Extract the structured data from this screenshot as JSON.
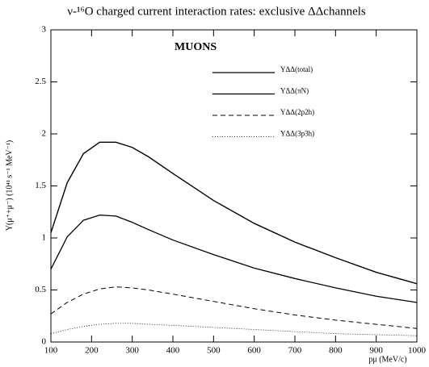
{
  "chart_data": {
    "type": "line",
    "title": "ν-¹⁶O charged current interaction rates: exclusive ΔΔchannels",
    "xlabel": "pμ (MeV/c)",
    "ylabel": "Y(μ⁺+μ⁻) (10⁴¹ s⁻¹ MeV⁻¹)",
    "annotation": "MUONS",
    "x": [
      100,
      140,
      180,
      220,
      260,
      300,
      340,
      400,
      500,
      600,
      700,
      800,
      900,
      1000
    ],
    "series": [
      {
        "name": "YΔΔ(total)",
        "color": "#000000",
        "style": "solid",
        "values": [
          1.05,
          1.53,
          1.81,
          1.92,
          1.92,
          1.87,
          1.78,
          1.62,
          1.36,
          1.14,
          0.96,
          0.81,
          0.67,
          0.56
        ]
      },
      {
        "name": "YΔΔ(πN)",
        "color": "#000000",
        "style": "solid",
        "values": [
          0.7,
          1.01,
          1.17,
          1.22,
          1.21,
          1.15,
          1.08,
          0.98,
          0.84,
          0.71,
          0.61,
          0.52,
          0.44,
          0.38
        ]
      },
      {
        "name": "YΔΔ(2p2h)",
        "color": "#000000",
        "style": "dashed",
        "values": [
          0.27,
          0.38,
          0.46,
          0.51,
          0.53,
          0.52,
          0.5,
          0.46,
          0.39,
          0.32,
          0.26,
          0.21,
          0.17,
          0.13
        ]
      },
      {
        "name": "YΔΔ(3p3h)",
        "color": "#000000",
        "style": "dotted",
        "values": [
          0.08,
          0.12,
          0.15,
          0.17,
          0.18,
          0.18,
          0.17,
          0.16,
          0.14,
          0.12,
          0.1,
          0.08,
          0.07,
          0.06
        ]
      }
    ],
    "xlim": [
      100,
      1000
    ],
    "xticks": [
      100,
      200,
      300,
      400,
      500,
      600,
      700,
      800,
      900,
      1000
    ],
    "ylim": [
      0,
      3
    ],
    "yticks": [
      0,
      0.5,
      1,
      1.5,
      2,
      2.5,
      3
    ]
  }
}
